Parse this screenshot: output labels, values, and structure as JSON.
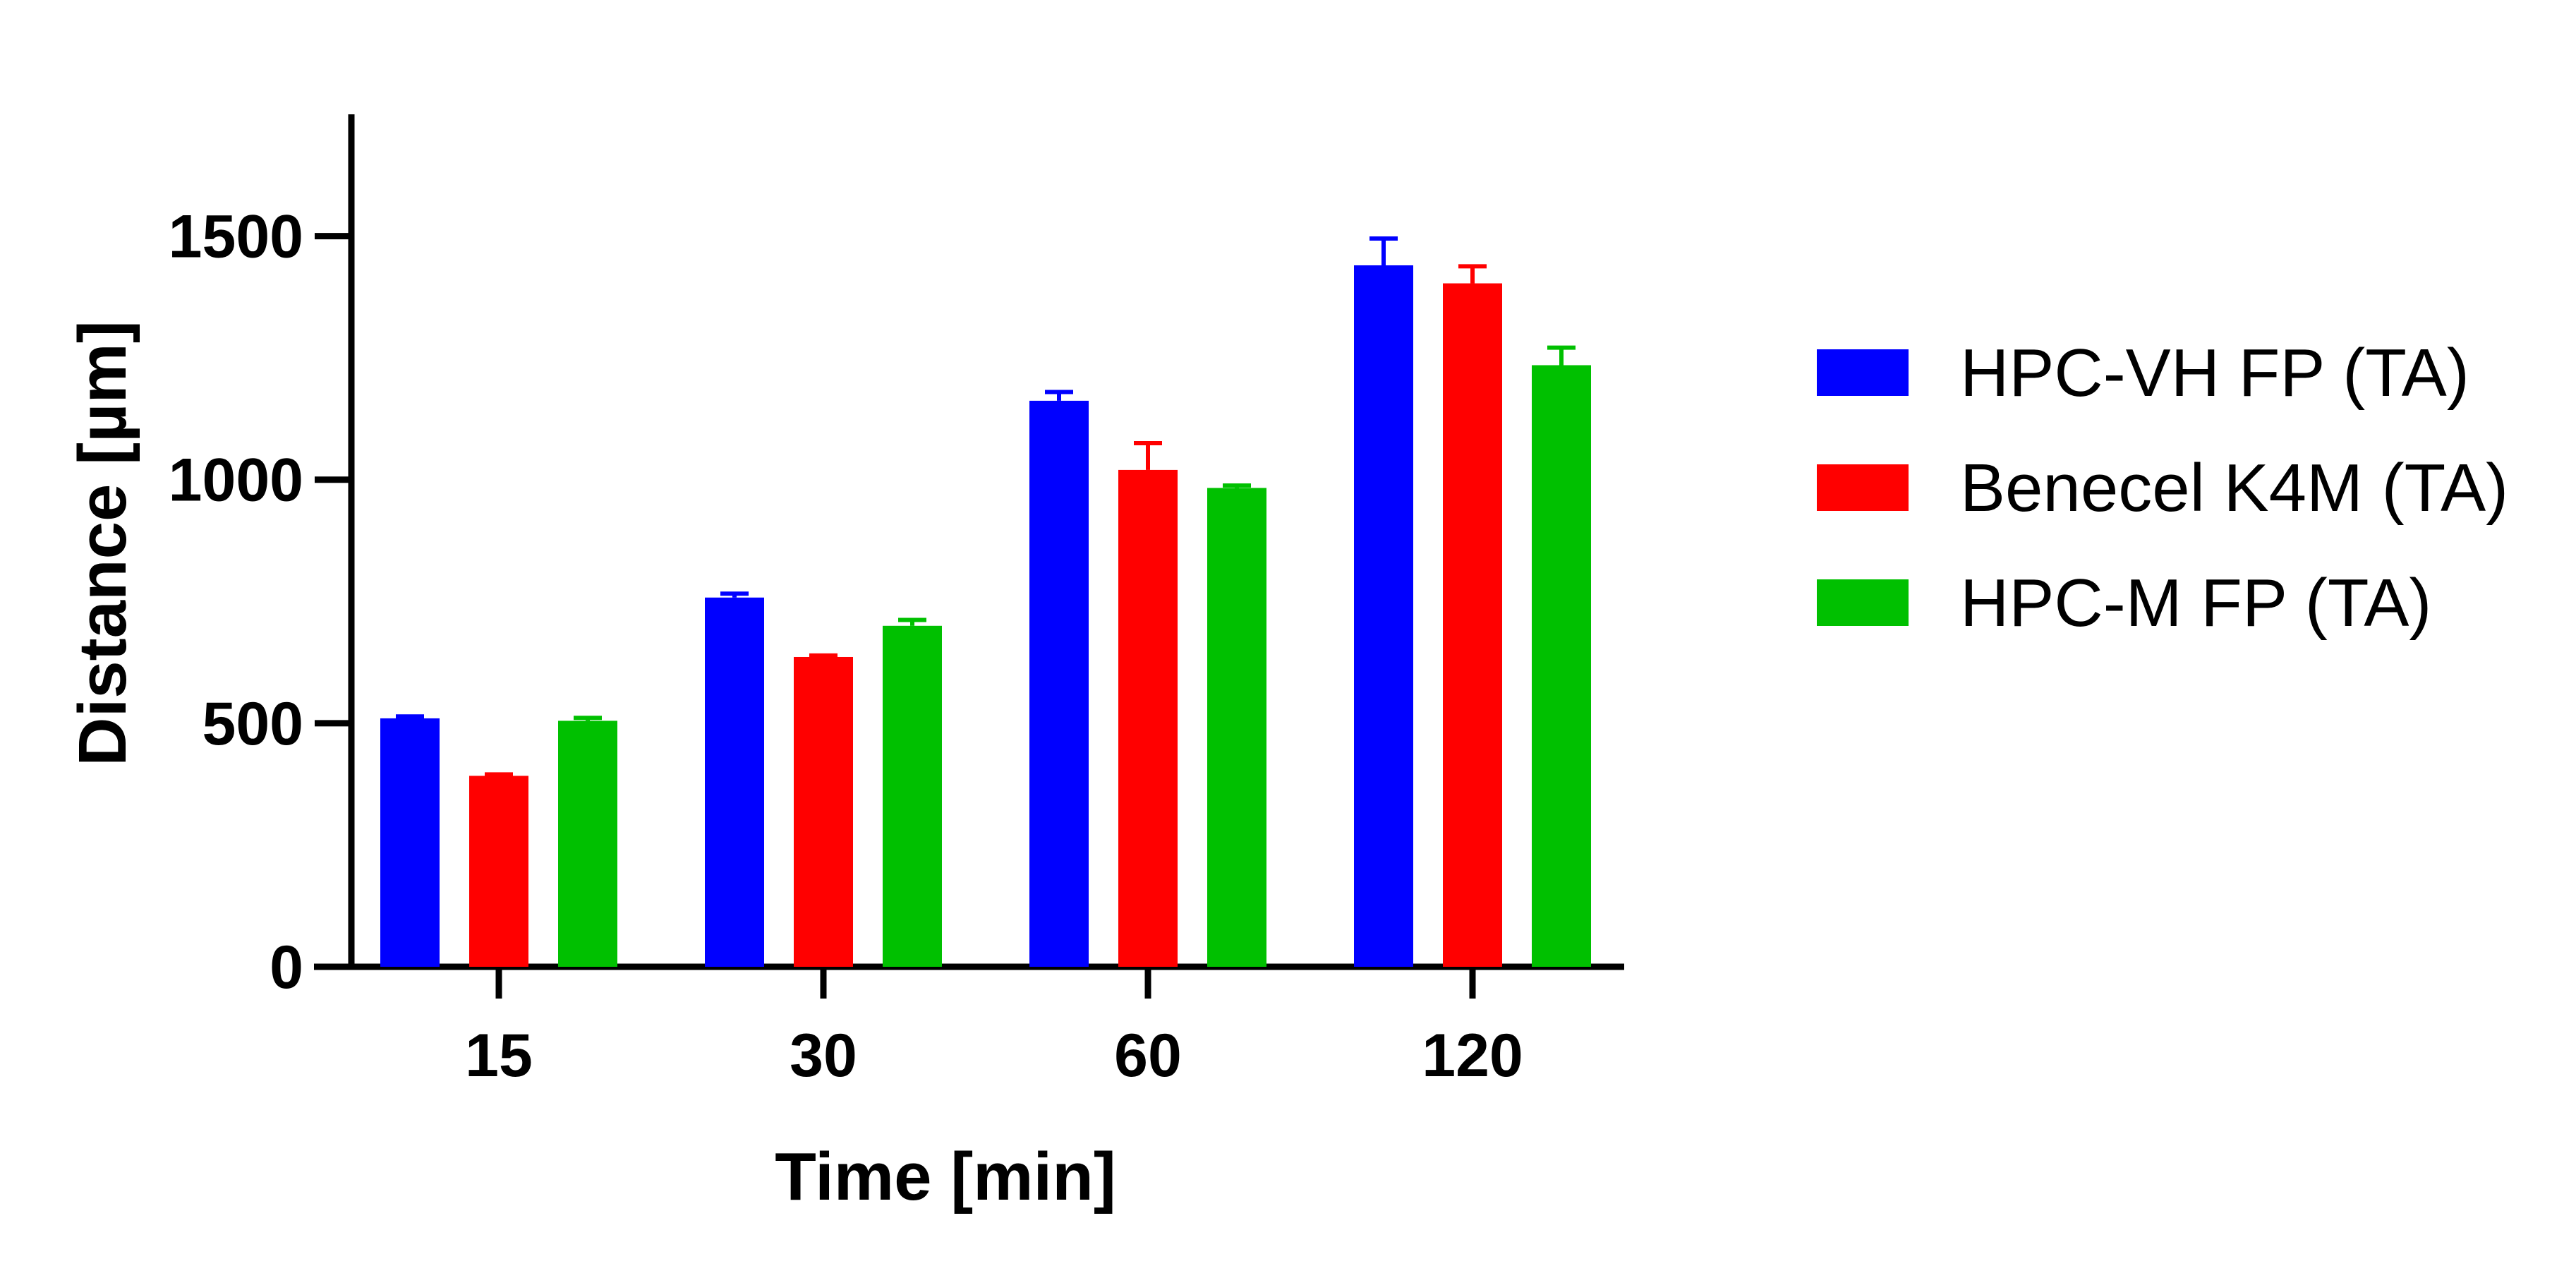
{
  "chart_data": {
    "type": "bar",
    "title": "",
    "xlabel": "Time [min]",
    "ylabel": "Distance [µm]",
    "categories": [
      "15",
      "30",
      "60",
      "120"
    ],
    "ylim": [
      0,
      1750
    ],
    "yticks": [
      0,
      500,
      1000,
      1500
    ],
    "grid": false,
    "legend_position": "right",
    "series": [
      {
        "name": "HPC-VH FP (TA)",
        "color": "#0000FF",
        "values": [
          510,
          758,
          1162,
          1440
        ],
        "errors": [
          4,
          8,
          18,
          55
        ]
      },
      {
        "name": "Benecel K4M (TA)",
        "color": "#FF0000",
        "values": [
          392,
          636,
          1020,
          1403
        ],
        "errors": [
          3,
          3,
          55,
          35
        ]
      },
      {
        "name": "HPC-M FP (TA)",
        "color": "#00C000",
        "values": [
          505,
          700,
          983,
          1235
        ],
        "errors": [
          6,
          12,
          5,
          36
        ]
      }
    ]
  }
}
